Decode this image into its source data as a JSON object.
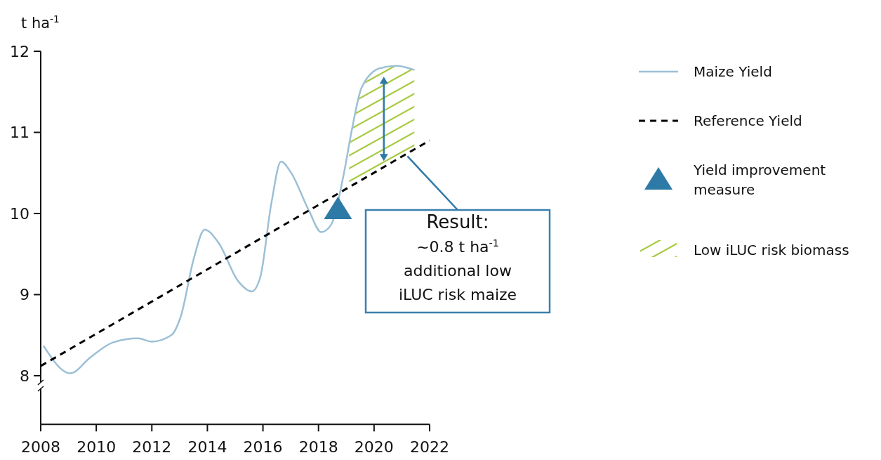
{
  "chart_data": {
    "type": "line",
    "ylabel": "t ha$^{-1}$",
    "xlim": [
      2008,
      2022
    ],
    "xticks": [
      2008,
      2010,
      2012,
      2014,
      2016,
      2018,
      2020,
      2022
    ],
    "ylim": [
      7.4,
      12
    ],
    "yticks": [
      8,
      9,
      10,
      11,
      12
    ],
    "grid": false,
    "legend": "right",
    "series": [
      {
        "name": "Maize Yield",
        "color": "#9cc0d6",
        "line_style": "solid",
        "x": [
          2008.1,
          2009.06,
          2009.8,
          2010.6,
          2011.5,
          2012.0,
          2012.7,
          2013.05,
          2013.5,
          2013.9,
          2014.4,
          2015.1,
          2015.6,
          2015.9,
          2016.3,
          2016.65,
          2017.0,
          2017.65,
          2018.1,
          2018.45,
          2018.9,
          2019.2,
          2019.55,
          2020.2,
          2020.8,
          2021.45
        ],
        "values": [
          8.37,
          8.03,
          8.23,
          8.41,
          8.46,
          8.42,
          8.5,
          8.74,
          9.43,
          9.8,
          9.64,
          9.17,
          9.04,
          9.21,
          10.12,
          10.64,
          10.51,
          10.04,
          9.77,
          9.86,
          10.47,
          11.03,
          11.55,
          11.79,
          11.82,
          11.77
        ]
      },
      {
        "name": "Reference Yield",
        "color": "#000000",
        "line_style": "dashed",
        "x": [
          2008,
          2022
        ],
        "values": [
          8.12,
          10.9
        ]
      },
      {
        "name": "Yield improvement measure",
        "type": "scatter",
        "color": "#2e7aa6",
        "marker": "triangle",
        "x": [
          2018.7
        ],
        "values": [
          10.07
        ]
      },
      {
        "name": "Low iLUC risk biomass",
        "type": "area",
        "color": "#a5c83c",
        "x": [
          2019.1,
          2019.55,
          2020.2,
          2020.8,
          2021.45
        ],
        "values": [
          10.85,
          11.55,
          11.79,
          11.82,
          11.77
        ]
      }
    ],
    "annotations": [
      "Result:\n~0.8 t ha$^{-1}$\nadditional low\niLUC risk maize"
    ]
  }
}
